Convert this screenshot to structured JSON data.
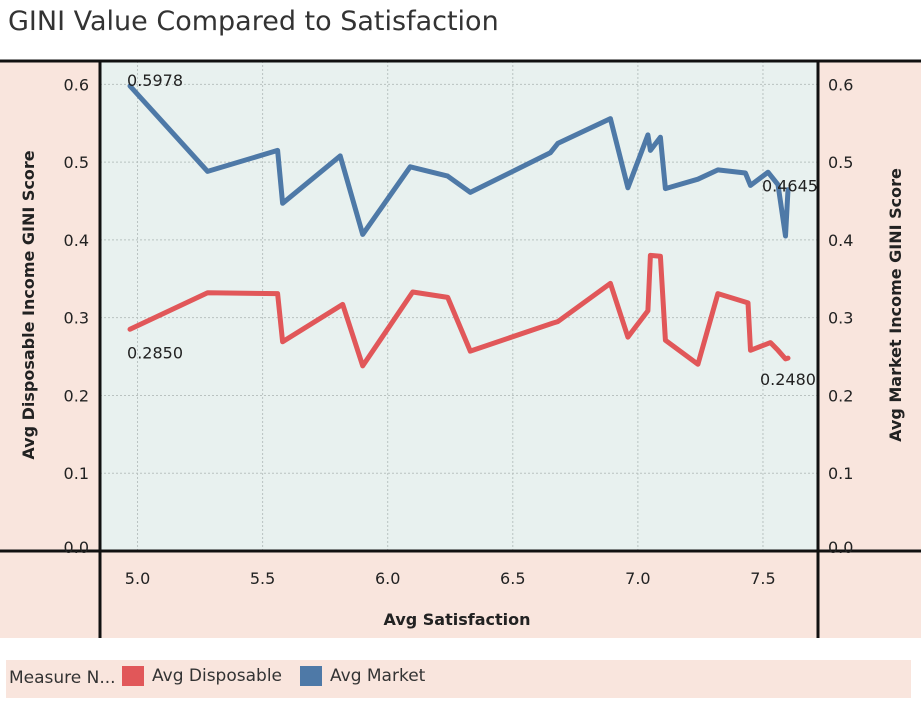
{
  "title": "GINI Value Compared to Satisfaction",
  "legend": {
    "title": "Measure N...",
    "items": [
      {
        "label": "Avg Disposable",
        "color": "#e15759"
      },
      {
        "label": "Avg Market",
        "color": "#4e79a7"
      }
    ]
  },
  "chart_data": {
    "type": "line",
    "title": "GINI Value Compared to Satisfaction",
    "xlabel": "Avg Satisfaction",
    "ylabel_left": "Avg Disposable Income GINI Score",
    "ylabel_right": "Avg Market Income GINI Score",
    "xlim": [
      4.85,
      7.72
    ],
    "ylim": [
      0,
      0.63
    ],
    "x_ticks": [
      "5.0",
      "5.5",
      "6.0",
      "6.5",
      "7.0",
      "7.5"
    ],
    "y_ticks": [
      "0.0",
      "0.1",
      "0.2",
      "0.3",
      "0.4",
      "0.5",
      "0.6"
    ],
    "colors": {
      "background": "#e8f1ef",
      "axis_bg": "#f9e5dd"
    },
    "series": [
      {
        "name": "Avg Market",
        "color": "#4e79a7",
        "x": [
          4.97,
          5.28,
          5.56,
          5.58,
          5.81,
          5.9,
          6.09,
          6.24,
          6.33,
          6.65,
          6.68,
          6.89,
          6.96,
          7.04,
          7.05,
          7.09,
          7.11,
          7.24,
          7.32,
          7.43,
          7.45,
          7.52,
          7.56,
          7.59,
          7.6
        ],
        "y": [
          0.5978,
          0.488,
          0.515,
          0.447,
          0.508,
          0.407,
          0.494,
          0.482,
          0.461,
          0.512,
          0.524,
          0.556,
          0.467,
          0.535,
          0.515,
          0.532,
          0.466,
          0.478,
          0.49,
          0.486,
          0.47,
          0.487,
          0.471,
          0.405,
          0.4645
        ]
      },
      {
        "name": "Avg Disposable",
        "color": "#e15759",
        "x": [
          4.97,
          5.28,
          5.56,
          5.58,
          5.82,
          5.9,
          6.1,
          6.24,
          6.33,
          6.66,
          6.68,
          6.89,
          6.96,
          7.04,
          7.05,
          7.09,
          7.11,
          7.24,
          7.32,
          7.44,
          7.45,
          7.53,
          7.56,
          7.59,
          7.6
        ],
        "y": [
          0.285,
          0.332,
          0.331,
          0.269,
          0.317,
          0.238,
          0.333,
          0.326,
          0.257,
          0.293,
          0.295,
          0.344,
          0.275,
          0.309,
          0.38,
          0.379,
          0.271,
          0.24,
          0.331,
          0.319,
          0.258,
          0.268,
          0.258,
          0.247,
          0.248
        ]
      }
    ],
    "data_labels": [
      {
        "series": "Avg Market",
        "x": 4.97,
        "y": 0.5978,
        "text": "0.5978"
      },
      {
        "series": "Avg Market",
        "x": 7.6,
        "y": 0.4645,
        "text": "0.4645"
      },
      {
        "series": "Avg Disposable",
        "x": 4.97,
        "y": 0.285,
        "text": "0.2850"
      },
      {
        "series": "Avg Disposable",
        "x": 7.6,
        "y": 0.248,
        "text": "0.2480"
      }
    ]
  }
}
